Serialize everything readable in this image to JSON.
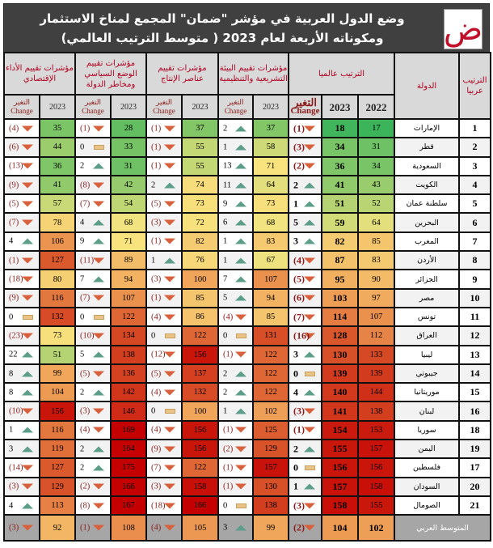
{
  "title": {
    "line1": "وضع الدول العربية في مؤشر \"ضمان\" المجمع لمناخ الاستثمار",
    "line2": "ومكوناته الأربعة لعام 2023 ( متوسط الترتيب العالمي)",
    "logo_glyph": "ض"
  },
  "headers": {
    "arab_rank": "الترتيب عربيا",
    "country": "الدولة",
    "global_rank": "الترتيب عالميا",
    "regulatory": "مؤشرات تقييم البيئة التشريعية والتنظيمية",
    "production": "مؤشرات تقييم عناصر الإنتاج",
    "political": "مؤشرات تقييم الوضع السياسي ومخاطر الدولة",
    "economic": "مؤشرات تقييم الأداء الإقتصادي",
    "y2022": "2022",
    "y2023": "2023",
    "change_ar": "التغير",
    "change_en": "Change"
  },
  "colors": {
    "up": "#5c9e8a",
    "down": "#d8603c",
    "flat": "#e9c486",
    "low": "#3cb55a",
    "mid": "#f8e580",
    "high": "#c00000"
  },
  "rows": [
    [
      "1",
      "الإمارات",
      "17",
      "18",
      "(1)",
      "37",
      "2",
      "37",
      "(1)",
      "28",
      "(1)",
      "35",
      "(4)"
    ],
    [
      "2",
      "قطر",
      "31",
      "34",
      "(3)",
      "58",
      "1",
      "55",
      "(1)",
      "33",
      "0",
      "44",
      "(6)"
    ],
    [
      "3",
      "السعودية",
      "34",
      "36",
      "(2)",
      "71",
      "13",
      "55",
      "(1)",
      "31",
      "2",
      "36",
      "(13)"
    ],
    [
      "4",
      "الكويت",
      "43",
      "41",
      "2",
      "64",
      "11",
      "74",
      "2",
      "42",
      "(8)",
      "41",
      "(9)"
    ],
    [
      "5",
      "سلطنة عمان",
      "52",
      "51",
      "1",
      "73",
      "9",
      "73",
      "(5)",
      "54",
      "(7)",
      "57",
      "(5)"
    ],
    [
      "6",
      "البحرين",
      "64",
      "59",
      "5",
      "68",
      "6",
      "72",
      "(3)",
      "68",
      "4",
      "78",
      "(7)"
    ],
    [
      "7",
      "المغرب",
      "85",
      "82",
      "3",
      "83",
      "1",
      "82",
      "(1)",
      "71",
      "9",
      "106",
      "4"
    ],
    [
      "8",
      "الأردن",
      "83",
      "87",
      "(4)",
      "67",
      "1",
      "76",
      "1",
      "89",
      "(11)",
      "127",
      "(1)"
    ],
    [
      "9",
      "الجزائر",
      "90",
      "95",
      "(5)",
      "107",
      "7",
      "100",
      "(3)",
      "94",
      "7",
      "80",
      "(18)"
    ],
    [
      "10",
      "مصر",
      "97",
      "103",
      "(6)",
      "94",
      "5",
      "85",
      "(1)",
      "107",
      "(7)",
      "116",
      "(9)"
    ],
    [
      "11",
      "تونس",
      "107",
      "114",
      "(7)",
      "85",
      "(4)",
      "86",
      "(4)",
      "122",
      "0",
      "132",
      "0"
    ],
    [
      "12",
      "العراق",
      "112",
      "128",
      "(16)",
      "131",
      "0",
      "122",
      "0",
      "134",
      "(10)",
      "73",
      "(23)"
    ],
    [
      "13",
      "ليبيا",
      "133",
      "130",
      "3",
      "122",
      "(1)",
      "156",
      "(12)",
      "138",
      "5",
      "51",
      "22"
    ],
    [
      "14",
      "جيبوتي",
      "139",
      "139",
      "0",
      "122",
      "2",
      "137",
      "(5)",
      "136",
      "(5)",
      "99",
      "8"
    ],
    [
      "15",
      "موريتانيا",
      "144",
      "140",
      "4",
      "122",
      "2",
      "132",
      "(4)",
      "142",
      "2",
      "104",
      "8"
    ],
    [
      "16",
      "لبنان",
      "138",
      "141",
      "(3)",
      "102",
      "1",
      "100",
      "0",
      "146",
      "(3)",
      "156",
      "(10)"
    ],
    [
      "18",
      "سوريا",
      "153",
      "154",
      "(1)",
      "125",
      "(1)",
      "156",
      "(4)",
      "169",
      "(4)",
      "116",
      "1"
    ],
    [
      "19",
      "اليمن",
      "157",
      "155",
      "2",
      "129",
      "(2)",
      "156",
      "(9)",
      "164",
      "2",
      "119",
      "3"
    ],
    [
      "17",
      "فلسطين",
      "156",
      "156",
      "0",
      "157",
      "(1)",
      "122",
      "(7)",
      "175",
      "2",
      "127",
      "(14)"
    ],
    [
      "20",
      "السودان",
      "158",
      "157",
      "1",
      "130",
      "(1)",
      "158",
      "(3)",
      "166",
      "(2)",
      "129",
      "(3)"
    ],
    [
      "21",
      "الصومال",
      "155",
      "158",
      "(3)",
      "138",
      "0",
      "166",
      "(18)",
      "167",
      "(8)",
      "113",
      "4"
    ]
  ],
  "average": [
    "المتوسط العربي",
    "102",
    "104",
    "(2)",
    "99",
    "3",
    "105",
    "(4)",
    "108",
    "(1)",
    "92",
    "(3)"
  ]
}
